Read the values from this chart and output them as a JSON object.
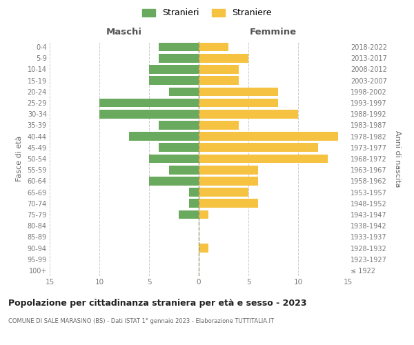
{
  "age_groups": [
    "100+",
    "95-99",
    "90-94",
    "85-89",
    "80-84",
    "75-79",
    "70-74",
    "65-69",
    "60-64",
    "55-59",
    "50-54",
    "45-49",
    "40-44",
    "35-39",
    "30-34",
    "25-29",
    "20-24",
    "15-19",
    "10-14",
    "5-9",
    "0-4"
  ],
  "birth_years": [
    "≤ 1922",
    "1923-1927",
    "1928-1932",
    "1933-1937",
    "1938-1942",
    "1943-1947",
    "1948-1952",
    "1953-1957",
    "1958-1962",
    "1963-1967",
    "1968-1972",
    "1973-1977",
    "1978-1982",
    "1983-1987",
    "1988-1992",
    "1993-1997",
    "1998-2002",
    "2003-2007",
    "2008-2012",
    "2013-2017",
    "2018-2022"
  ],
  "maschi": [
    0,
    0,
    0,
    0,
    0,
    2,
    1,
    1,
    5,
    3,
    5,
    4,
    7,
    4,
    10,
    10,
    3,
    5,
    5,
    4,
    4
  ],
  "femmine": [
    0,
    0,
    1,
    0,
    0,
    1,
    6,
    5,
    6,
    6,
    13,
    12,
    14,
    4,
    10,
    8,
    8,
    4,
    4,
    5,
    3
  ],
  "maschi_color": "#6aaa5e",
  "femmine_color": "#f5c242",
  "title": "Popolazione per cittadinanza straniera per età e sesso - 2023",
  "subtitle": "COMUNE DI SALE MARASINO (BS) - Dati ISTAT 1° gennaio 2023 - Elaborazione TUTTITALIA.IT",
  "xlabel_left": "Maschi",
  "xlabel_right": "Femmine",
  "ylabel_left": "Fasce di età",
  "ylabel_right": "Anni di nascita",
  "legend_stranieri": "Stranieri",
  "legend_straniere": "Straniere",
  "xlim": 15,
  "background_color": "#ffffff",
  "grid_color": "#cccccc"
}
